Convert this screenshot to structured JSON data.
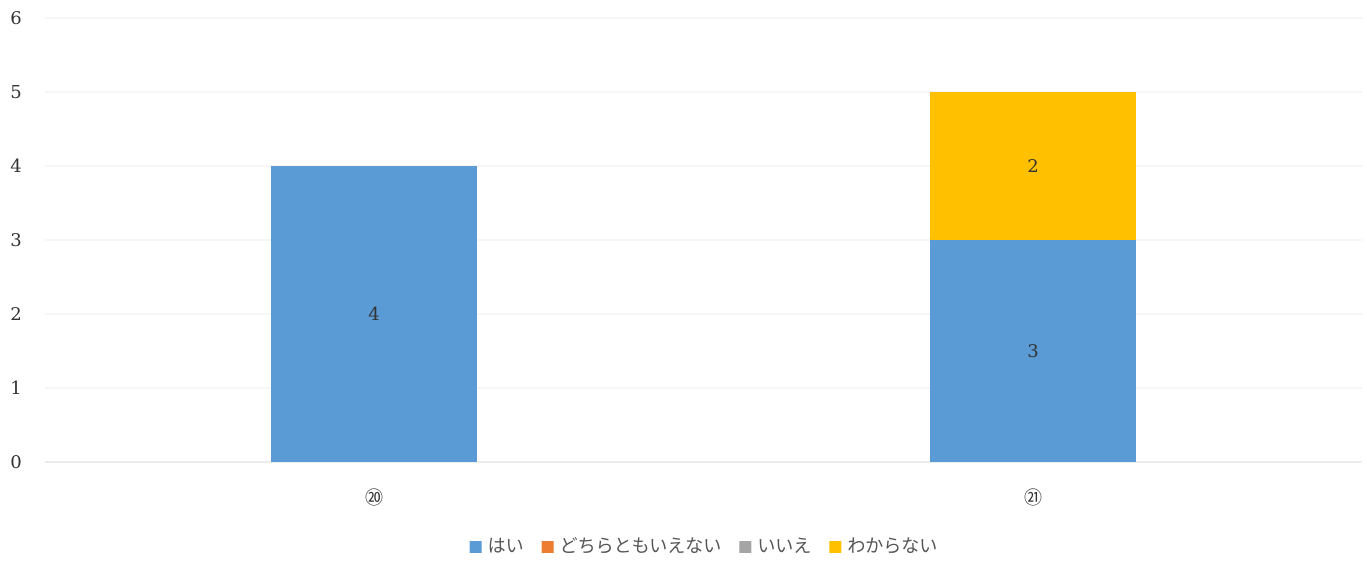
{
  "chart_data": {
    "type": "bar",
    "stacked": true,
    "categories": [
      "⑳",
      "㉑"
    ],
    "series": [
      {
        "name": "はい",
        "values": [
          4,
          3
        ],
        "color": "#5b9bd5"
      },
      {
        "name": "どちらともいえない",
        "values": [
          0,
          0
        ],
        "color": "#ed7d31"
      },
      {
        "name": "いいえ",
        "values": [
          0,
          0
        ],
        "color": "#a5a5a5"
      },
      {
        "name": "わからない",
        "values": [
          0,
          2
        ],
        "color": "#ffc000"
      }
    ],
    "ylim": [
      0,
      6
    ],
    "yticks": [
      0,
      1,
      2,
      3,
      4,
      5,
      6
    ],
    "grid": true,
    "legend_position": "bottom",
    "data_labels": true
  }
}
